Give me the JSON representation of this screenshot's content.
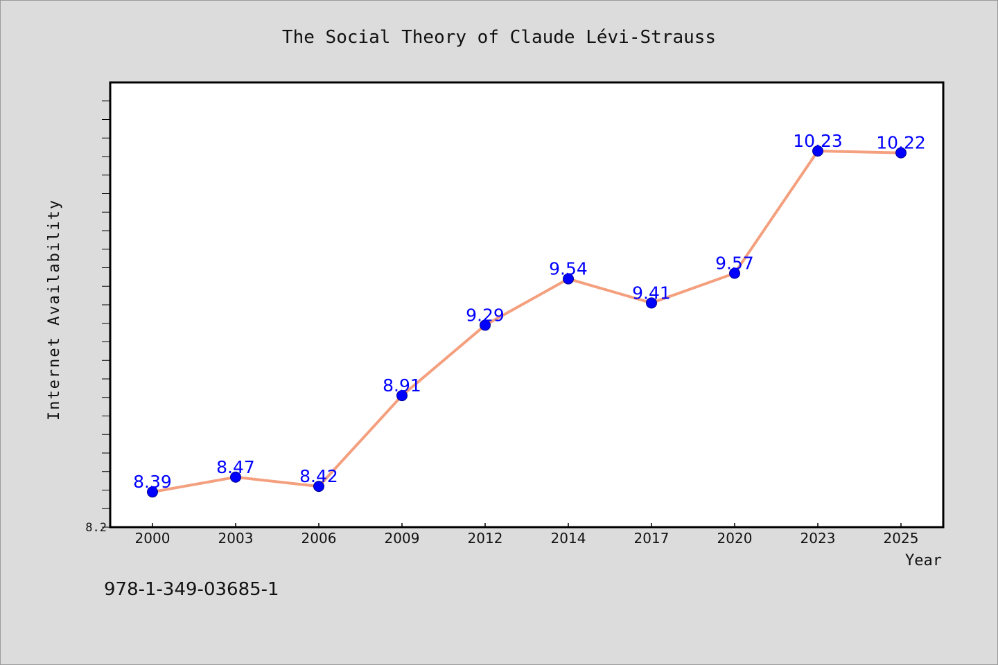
{
  "chart_data": {
    "type": "line",
    "title": "The Social Theory of Claude Lévi-Strauss",
    "xlabel": "Year",
    "ylabel": "Internet Availability",
    "categories": [
      "2000",
      "2003",
      "2006",
      "2009",
      "2012",
      "2014",
      "2017",
      "2020",
      "2023",
      "2025"
    ],
    "series": [
      {
        "values": [
          8.39,
          8.47,
          8.42,
          8.91,
          9.29,
          9.54,
          9.41,
          9.57,
          10.23,
          10.22
        ],
        "data_labels": [
          "8.39",
          "8.47",
          "8.42",
          "8.91",
          "9.29",
          "9.54",
          "9.41",
          "9.57",
          "10.23",
          "10.22"
        ]
      }
    ],
    "ylim": [
      8.2,
      10.6
    ],
    "y_tick_label": "8.2",
    "grid": false,
    "colors": {
      "line": "#f4a07f",
      "marker": "#0000ff",
      "data_label": "#0000ff",
      "plot_bg": "#ffffff",
      "page_bg": "#dcdcdc"
    }
  },
  "footer": {
    "code": "978-1-349-03685-1"
  }
}
